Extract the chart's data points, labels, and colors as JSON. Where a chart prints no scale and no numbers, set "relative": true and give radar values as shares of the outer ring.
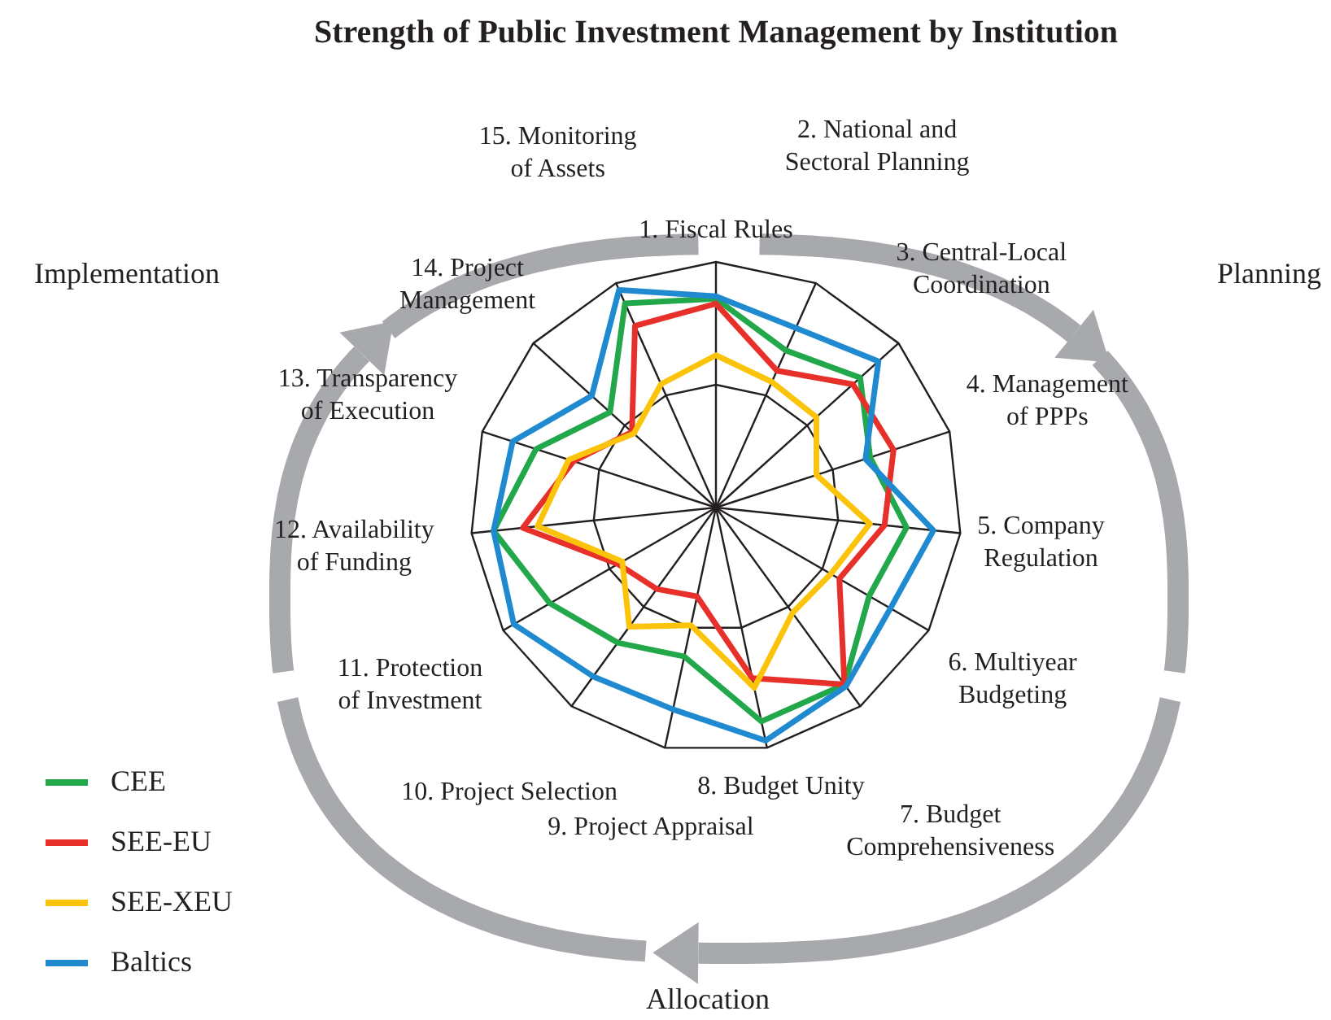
{
  "chart_data": {
    "type": "radar",
    "title": "Strength of Public Investment Management by Institution",
    "relative": true,
    "grid": true,
    "legend": "bottom left",
    "categories": [
      "1. Fiscal Rules",
      "2. National and Sectoral Planning",
      "3. Central-Local Coordination",
      "4. Management of PPPs",
      "5. Company Regulation",
      "6. Multiyear Budgeting",
      "7. Budget Comprehensiveness",
      "8. Budget Unity",
      "9. Project Appraisal",
      "10. Project Selection",
      "11. Protection of Investment",
      "12. Availability of Funding",
      "13. Transparency of Execution",
      "14. Project Management",
      "15. Monitoring of Assets"
    ],
    "series": [
      {
        "name": "CEE",
        "color": "#22a84a",
        "values": [
          0.85,
          0.7,
          0.79,
          0.66,
          0.78,
          0.72,
          0.89,
          0.89,
          0.62,
          0.68,
          0.78,
          0.91,
          0.77,
          0.58,
          0.91
        ]
      },
      {
        "name": "SEE-EU",
        "color": "#e8302a",
        "values": [
          0.83,
          0.61,
          0.75,
          0.76,
          0.69,
          0.58,
          0.89,
          0.71,
          0.37,
          0.41,
          0.46,
          0.79,
          0.61,
          0.46,
          0.81
        ]
      },
      {
        "name": "SEE-XEU",
        "color": "#fcc30b",
        "values": [
          0.62,
          0.56,
          0.55,
          0.43,
          0.63,
          0.54,
          0.53,
          0.75,
          0.49,
          0.6,
          0.44,
          0.73,
          0.63,
          0.45,
          0.55
        ]
      },
      {
        "name": "Baltics",
        "color": "#1f8ad0",
        "values": [
          0.86,
          0.8,
          0.89,
          0.64,
          0.89,
          0.82,
          0.9,
          0.97,
          0.84,
          0.85,
          0.95,
          0.91,
          0.87,
          0.68,
          0.97
        ]
      }
    ],
    "annotations": [
      "Planning",
      "Allocation",
      "Implementation"
    ]
  }
}
